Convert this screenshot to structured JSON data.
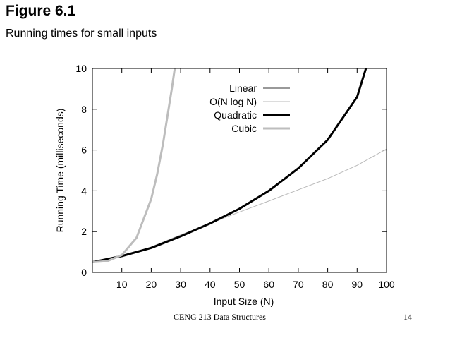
{
  "slide": {
    "title": "Figure 6.1",
    "subtitle": "Running times for small inputs",
    "footer_course": "CENG 213 Data Structures",
    "page_number": "14"
  },
  "chart_data": {
    "type": "line",
    "xlabel": "Input Size (N)",
    "ylabel": "Running Time (milliseconds)",
    "xlim": [
      0,
      100
    ],
    "ylim": [
      0,
      10
    ],
    "xticks": [
      10,
      20,
      30,
      40,
      50,
      60,
      70,
      80,
      90,
      100
    ],
    "yticks": [
      0,
      2,
      4,
      6,
      8,
      10
    ],
    "grid": false,
    "legend_position": "top-right",
    "series": [
      {
        "name": "Linear",
        "color": "#333333",
        "width": 1,
        "x": [
          0,
          100
        ],
        "y": [
          0.5,
          0.5
        ]
      },
      {
        "name": "O(N log N)",
        "color": "#b8b8b8",
        "width": 1,
        "x": [
          0,
          10,
          20,
          30,
          40,
          50,
          60,
          70,
          80,
          90,
          100
        ],
        "y": [
          0.5,
          0.76,
          1.25,
          1.84,
          2.4,
          2.96,
          3.5,
          4.05,
          4.6,
          5.25,
          6.05
        ]
      },
      {
        "name": "Quadratic",
        "color": "#000000",
        "width": 3,
        "x": [
          0,
          10,
          20,
          30,
          40,
          50,
          60,
          70,
          80,
          90,
          93
        ],
        "y": [
          0.5,
          0.8,
          1.2,
          1.77,
          2.4,
          3.12,
          4.0,
          5.1,
          6.5,
          8.6,
          10.0
        ]
      },
      {
        "name": "Cubic",
        "color": "#bdbdbd",
        "width": 3,
        "x": [
          0,
          5,
          10,
          15,
          20,
          22,
          24,
          26,
          27,
          28
        ],
        "y": [
          0.5,
          0.55,
          0.85,
          1.7,
          3.6,
          4.8,
          6.3,
          8.1,
          9.0,
          10.0
        ]
      }
    ]
  }
}
